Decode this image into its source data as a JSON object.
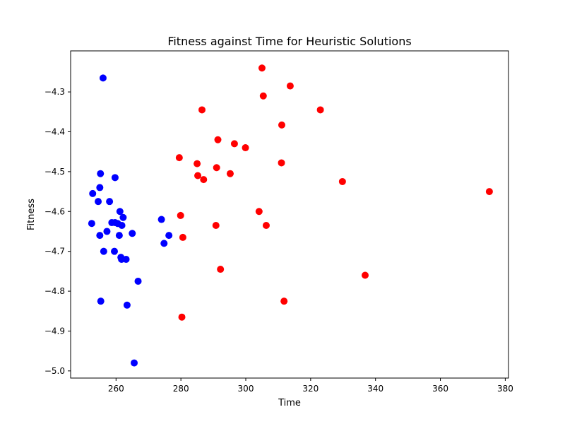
{
  "chart_data": {
    "type": "scatter",
    "title": "Fitness against Time for Heuristic Solutions",
    "xlabel": "Time",
    "ylabel": "Fitness",
    "xlim": [
      246,
      381
    ],
    "ylim": [
      -5.018,
      -4.197
    ],
    "xticks": [
      260,
      280,
      300,
      320,
      340,
      360,
      380
    ],
    "yticks": [
      -5.0,
      -4.9,
      -4.8,
      -4.7,
      -4.6,
      -4.5,
      -4.4,
      -4.3
    ],
    "xtick_labels": [
      "260",
      "280",
      "300",
      "320",
      "340",
      "360",
      "380"
    ],
    "ytick_labels": [
      "−5.0",
      "−4.9",
      "−4.8",
      "−4.7",
      "−4.6",
      "−4.5",
      "−4.4",
      "−4.3"
    ],
    "grid": false,
    "series": [
      {
        "color": "#0000ff",
        "points": [
          [
            256.0,
            -4.265
          ],
          [
            255.2,
            -4.505
          ],
          [
            259.7,
            -4.515
          ],
          [
            252.8,
            -4.555
          ],
          [
            255.0,
            -4.54
          ],
          [
            254.5,
            -4.575
          ],
          [
            258.0,
            -4.575
          ],
          [
            261.2,
            -4.6
          ],
          [
            252.5,
            -4.63
          ],
          [
            258.7,
            -4.628
          ],
          [
            259.7,
            -4.628
          ],
          [
            260.5,
            -4.63
          ],
          [
            261.8,
            -4.635
          ],
          [
            262.2,
            -4.615
          ],
          [
            257.2,
            -4.65
          ],
          [
            255.0,
            -4.66
          ],
          [
            261.0,
            -4.66
          ],
          [
            265.0,
            -4.655
          ],
          [
            256.2,
            -4.7
          ],
          [
            259.5,
            -4.7
          ],
          [
            261.5,
            -4.715
          ],
          [
            261.7,
            -4.72
          ],
          [
            263.1,
            -4.72
          ],
          [
            266.8,
            -4.775
          ],
          [
            255.3,
            -4.825
          ],
          [
            263.4,
            -4.835
          ],
          [
            265.6,
            -4.98
          ],
          [
            274.0,
            -4.62
          ],
          [
            276.3,
            -4.66
          ],
          [
            274.8,
            -4.68
          ]
        ]
      },
      {
        "color": "#ff0000",
        "points": [
          [
            305.0,
            -4.24
          ],
          [
            313.7,
            -4.285
          ],
          [
            305.4,
            -4.31
          ],
          [
            286.5,
            -4.345
          ],
          [
            323.0,
            -4.345
          ],
          [
            311.1,
            -4.383
          ],
          [
            291.4,
            -4.42
          ],
          [
            296.5,
            -4.43
          ],
          [
            299.9,
            -4.44
          ],
          [
            279.5,
            -4.465
          ],
          [
            285.0,
            -4.48
          ],
          [
            311.0,
            -4.478
          ],
          [
            291.0,
            -4.49
          ],
          [
            285.2,
            -4.51
          ],
          [
            287.0,
            -4.52
          ],
          [
            295.2,
            -4.505
          ],
          [
            329.8,
            -4.525
          ],
          [
            375.1,
            -4.55
          ],
          [
            304.1,
            -4.6
          ],
          [
            279.9,
            -4.61
          ],
          [
            290.8,
            -4.635
          ],
          [
            306.3,
            -4.635
          ],
          [
            280.6,
            -4.665
          ],
          [
            292.2,
            -4.745
          ],
          [
            336.8,
            -4.76
          ],
          [
            311.8,
            -4.825
          ],
          [
            280.3,
            -4.865
          ]
        ]
      }
    ]
  }
}
